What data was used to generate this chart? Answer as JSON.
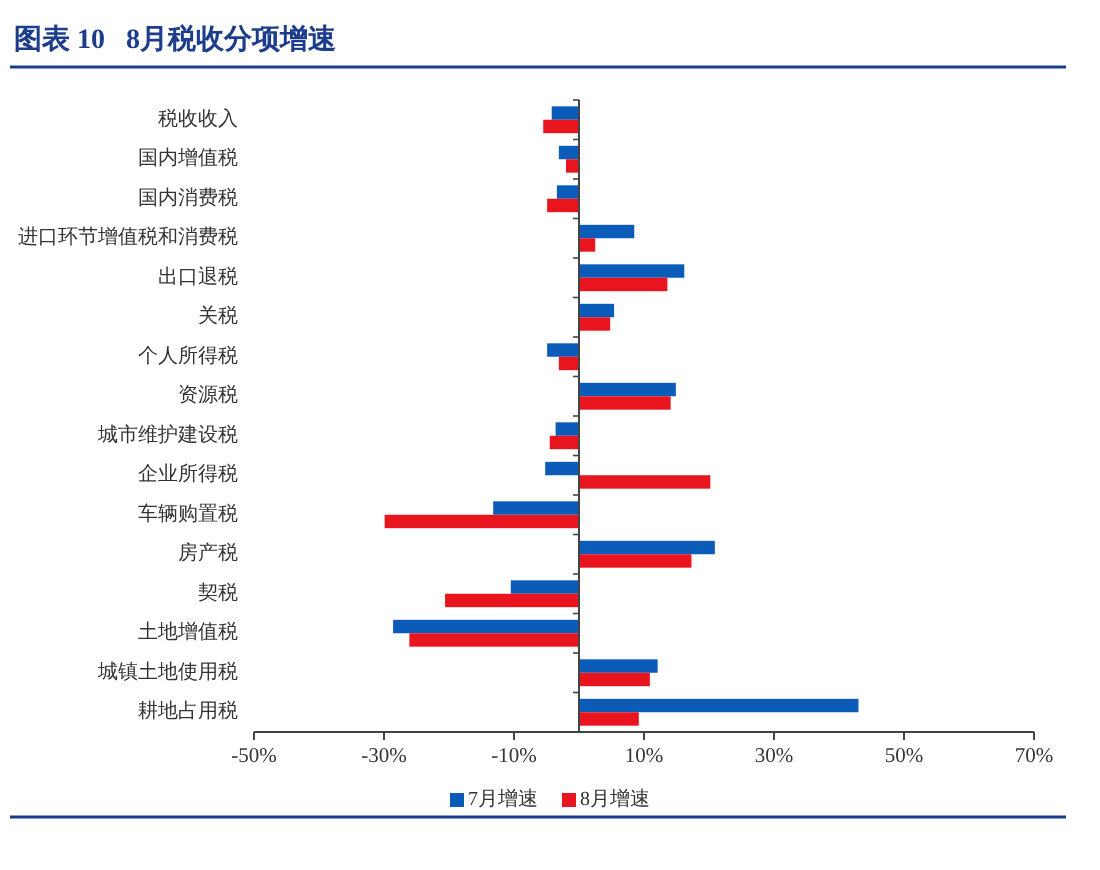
{
  "chart_data": {
    "type": "bar",
    "orientation": "horizontal",
    "title": "图表 10   8月税收分项增速",
    "categories": [
      "税收收入",
      "国内增值税",
      "国内消费税",
      "进口环节增值税和消费税",
      "出口退税",
      "关税",
      "个人所得税",
      "资源税",
      "城市维护建设税",
      "企业所得税",
      "车辆购置税",
      "房产税",
      "契税",
      "土地增值税",
      "城镇土地使用税",
      "耕地占用税"
    ],
    "series": [
      {
        "name": "7月增速",
        "color": "#0b5cb8",
        "values": [
          -4.2,
          -3.1,
          -3.4,
          8.5,
          16.2,
          5.4,
          -4.9,
          14.9,
          -3.6,
          -5.2,
          -13.2,
          20.9,
          -10.5,
          -28.6,
          12.1,
          43.0
        ]
      },
      {
        "name": "8月增速",
        "color": "#e8151e",
        "values": [
          -5.5,
          -2.0,
          -4.9,
          2.5,
          13.6,
          4.8,
          -3.1,
          14.1,
          -4.5,
          20.2,
          -29.9,
          17.3,
          -20.6,
          -26.1,
          10.9,
          9.2
        ]
      }
    ],
    "xlim": [
      -50,
      70
    ],
    "xticks": [
      {
        "value": -50,
        "label": "-50%"
      },
      {
        "value": -30,
        "label": "-30%"
      },
      {
        "value": -10,
        "label": "-10%"
      },
      {
        "value": 10,
        "label": "10%"
      },
      {
        "value": 30,
        "label": "30%"
      },
      {
        "value": 50,
        "label": "50%"
      },
      {
        "value": 70,
        "label": "70%"
      }
    ],
    "legend": "bottom"
  }
}
